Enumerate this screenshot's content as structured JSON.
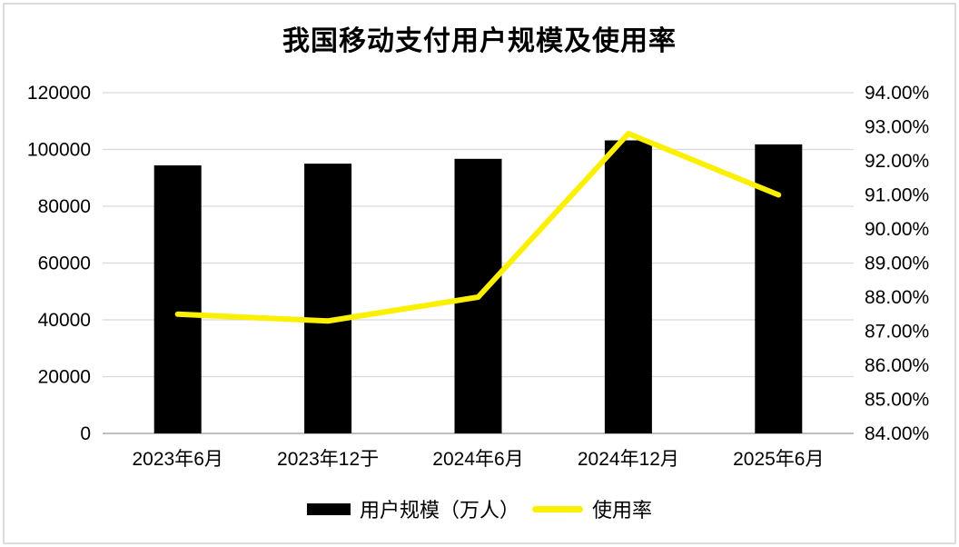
{
  "figure": {
    "title": "我国移动支付用户规模及使用率"
  },
  "chart_data": {
    "type": "combo-bar-line",
    "title": "我国移动支付用户规模及使用率",
    "categories": [
      "2023年6月",
      "2023年12于",
      "2024年6月",
      "2024年12月",
      "2025年6月"
    ],
    "series": [
      {
        "name": "用户规模（万人）",
        "type": "bar",
        "axis": "left",
        "color": "#000000",
        "values": [
          94400,
          95000,
          96700,
          103200,
          101800
        ]
      },
      {
        "name": "使用率",
        "type": "line",
        "axis": "right",
        "color": "#fcf002",
        "values": [
          87.5,
          87.3,
          88.0,
          92.8,
          91.0
        ]
      }
    ],
    "left_axis": {
      "min": 0,
      "max": 120000,
      "step": 20000,
      "tick_labels": [
        "0",
        "20000",
        "40000",
        "60000",
        "80000",
        "100000",
        "120000"
      ]
    },
    "right_axis": {
      "min": 84,
      "max": 94,
      "step": 1,
      "tick_labels": [
        "84.00%",
        "85.00%",
        "86.00%",
        "87.00%",
        "88.00%",
        "89.00%",
        "90.00%",
        "91.00%",
        "92.00%",
        "93.00%",
        "94.00%"
      ]
    },
    "grid": {
      "horizontal": true,
      "vertical": false
    },
    "legend_position": "bottom",
    "colors": {
      "bar": "#000000",
      "line": "#fcf002",
      "gridline": "#d9d9d9",
      "axis_line": "#bfbfbf",
      "text": "#000000",
      "frame": "#dcdcdc"
    }
  },
  "legend": {
    "items": [
      {
        "label": "用户规模（万人）",
        "swatch": "bar"
      },
      {
        "label": "使用率",
        "swatch": "line"
      }
    ]
  }
}
